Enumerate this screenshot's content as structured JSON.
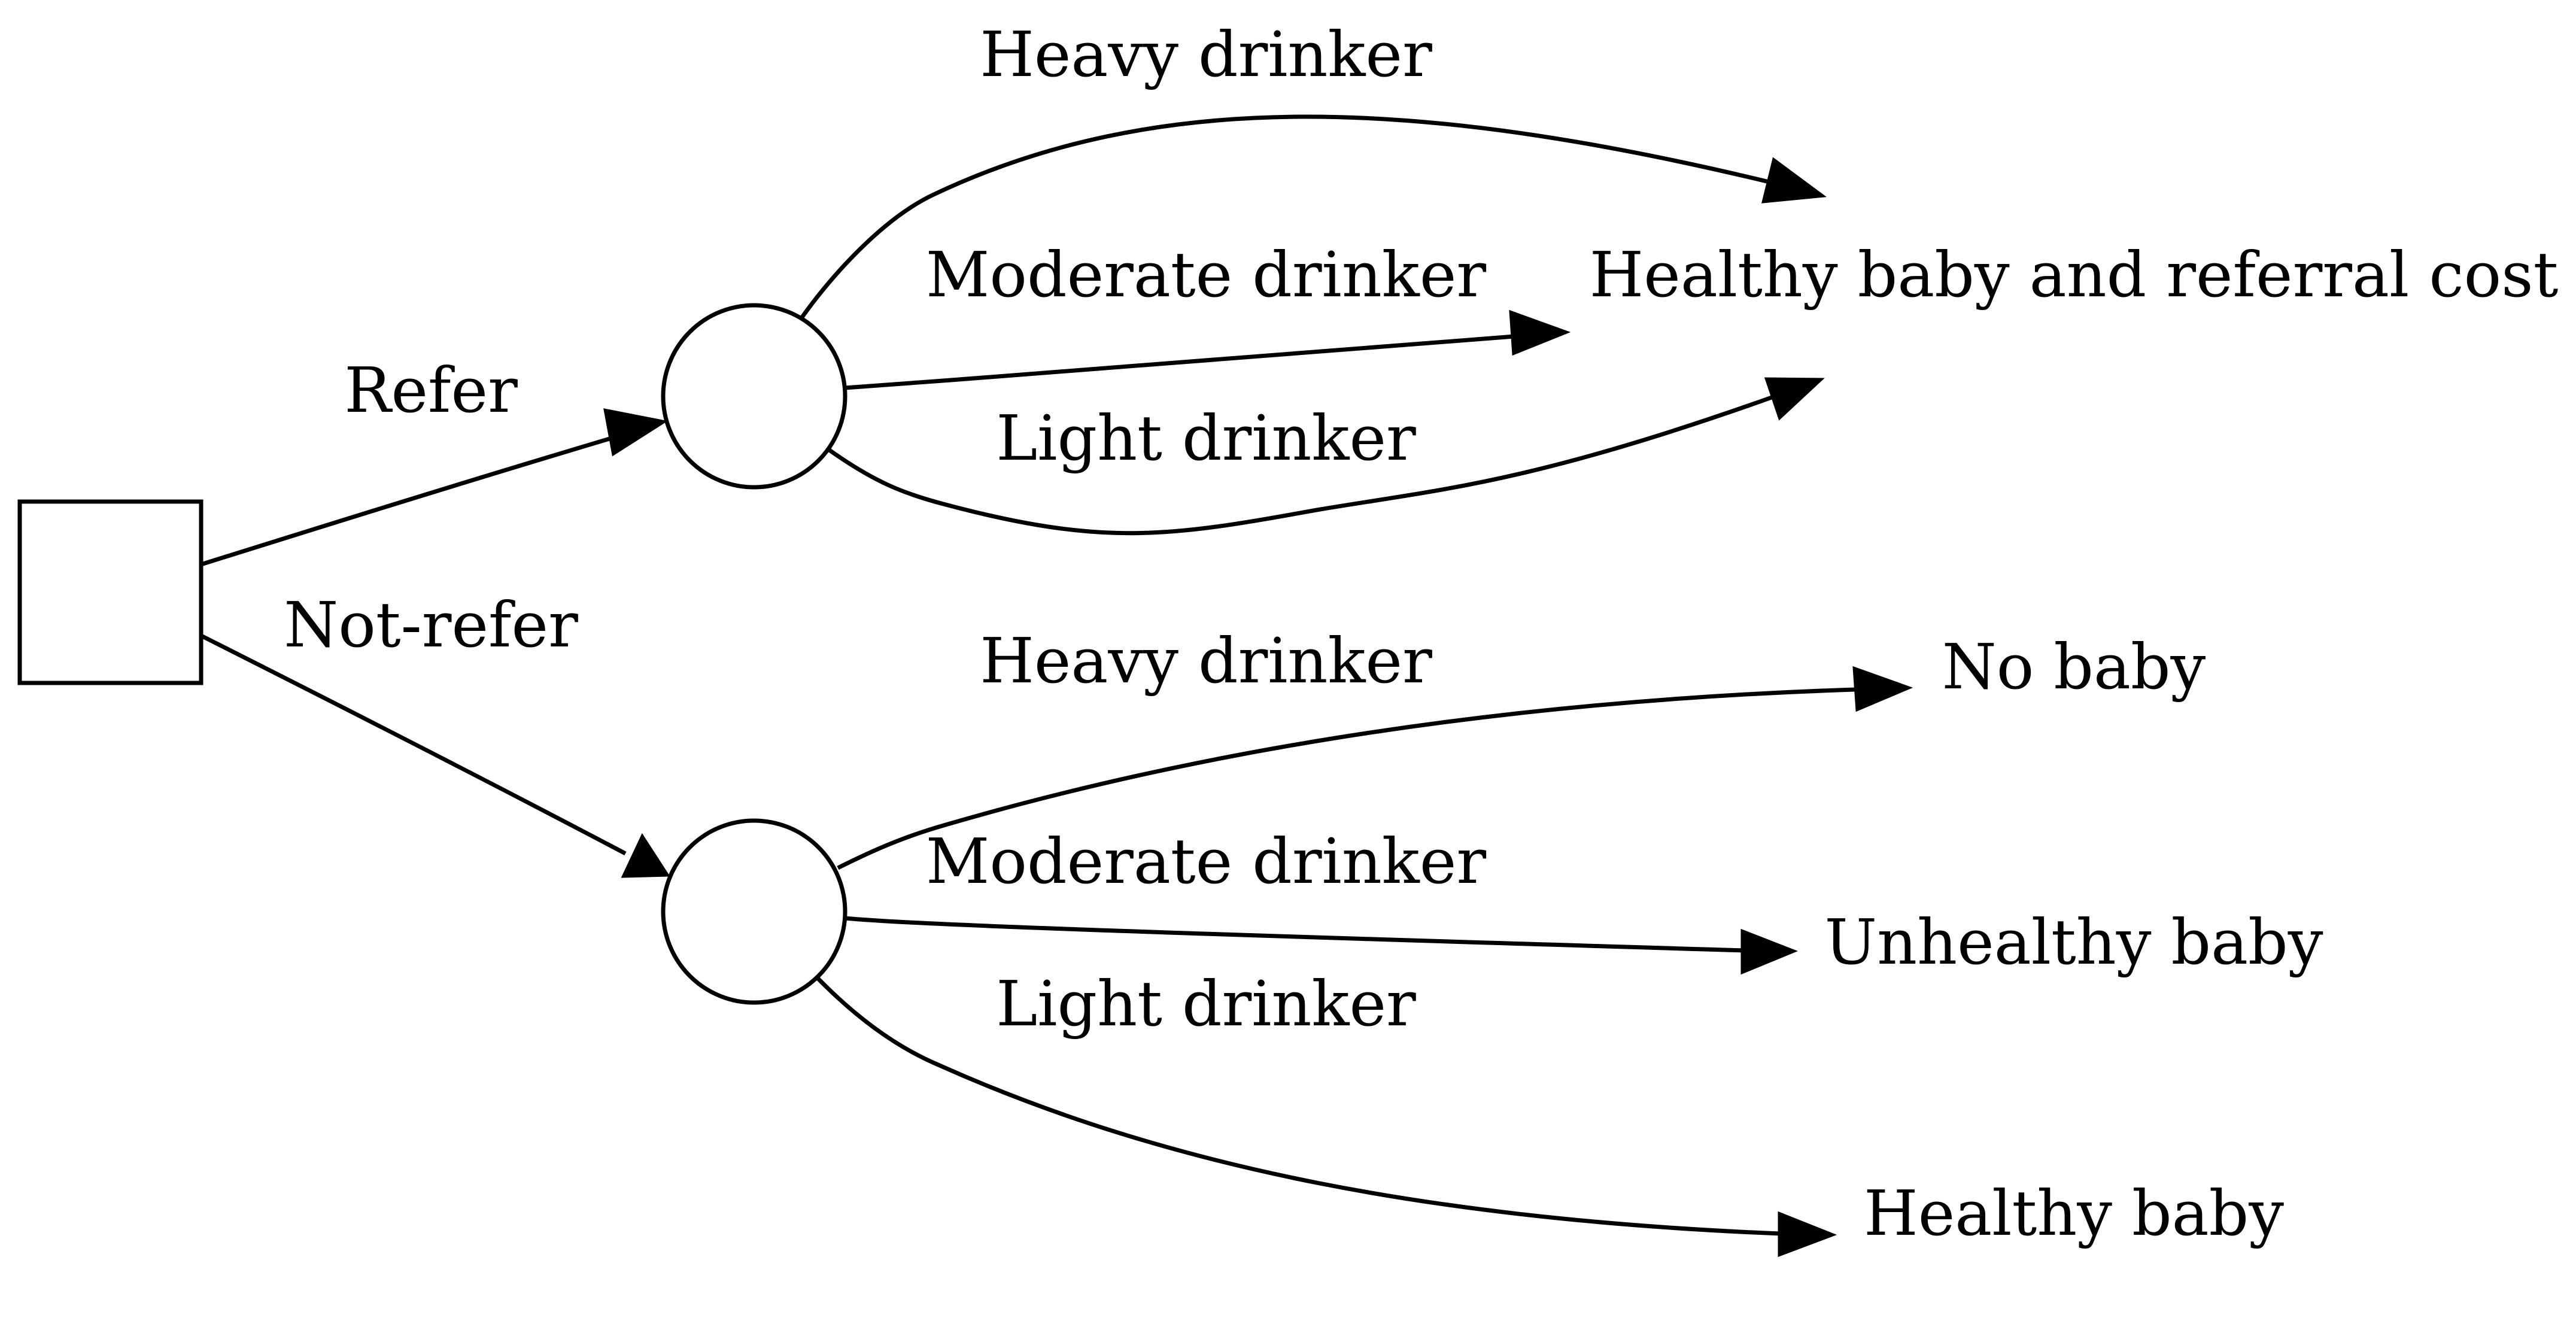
{
  "decision_node": {
    "shape": "square"
  },
  "chance_nodes": [
    {
      "id": "refer-chance",
      "shape": "circle"
    },
    {
      "id": "not-refer-chance",
      "shape": "circle"
    }
  ],
  "branches": {
    "refer": "Refer",
    "not_refer": "Not-refer"
  },
  "refer_outcomes": {
    "heavy": "Heavy drinker",
    "moderate": "Moderate drinker",
    "light": "Light drinker"
  },
  "not_refer_outcomes": {
    "heavy": "Heavy drinker",
    "moderate": "Moderate drinker",
    "light": "Light drinker"
  },
  "results": {
    "refer": "Healthy baby and referral cost",
    "no_baby": "No baby",
    "unhealthy_baby": "Unhealthy baby",
    "healthy_baby": "Healthy baby"
  },
  "colors": {
    "stroke": "#000000",
    "background": "#ffffff"
  }
}
